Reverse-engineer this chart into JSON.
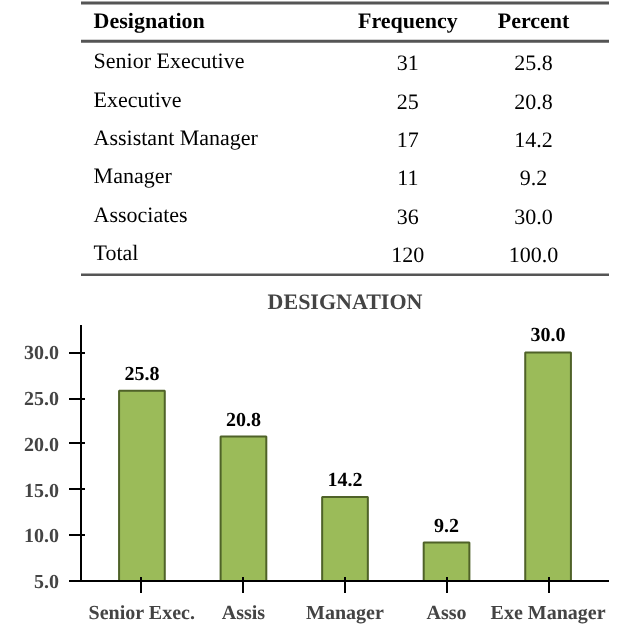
{
  "chart_data": [
    {
      "type": "heatmap",
      "ylabel": "Designation",
      "categories": [
        "Frequency",
        "Percent"
      ],
      "y_categories": [
        "Senior Executive",
        "Executive",
        "Assistant Manager",
        "Manager",
        "Associates",
        "Total"
      ],
      "cells": [
        [
          31,
          25.8
        ],
        [
          25,
          20.8
        ],
        [
          17,
          14.2
        ],
        [
          11,
          9.2
        ],
        [
          36,
          30.0
        ],
        [
          120,
          100.0
        ]
      ],
      "cell_labels": [
        [
          "31",
          "25.8"
        ],
        [
          "25",
          "20.8"
        ],
        [
          "17",
          "14.2"
        ],
        [
          "11",
          "9.2"
        ],
        [
          "36",
          "30.0"
        ],
        [
          "120",
          "100.0"
        ]
      ]
    },
    {
      "type": "bar",
      "title": "DESIGNATION",
      "categories": [
        "Senior Exec.",
        "Assis",
        "Manager",
        "Asso",
        "Exe Manager"
      ],
      "values": [
        25.8,
        20.8,
        14.2,
        9.2,
        30.0
      ],
      "value_labels": [
        "25.8",
        "20.8",
        "14.2",
        "9.2",
        "30.0"
      ],
      "color": "#9bbb59",
      "ylim": [
        5,
        33
      ],
      "yticks": [
        {
          "value": 5,
          "label": "5.0"
        },
        {
          "value": 10,
          "label": "10.0"
        },
        {
          "value": 15,
          "label": "15.0"
        },
        {
          "value": 20,
          "label": "20.0"
        },
        {
          "value": 25,
          "label": "25.0"
        },
        {
          "value": 30,
          "label": "30.0"
        }
      ],
      "grid": false
    }
  ]
}
